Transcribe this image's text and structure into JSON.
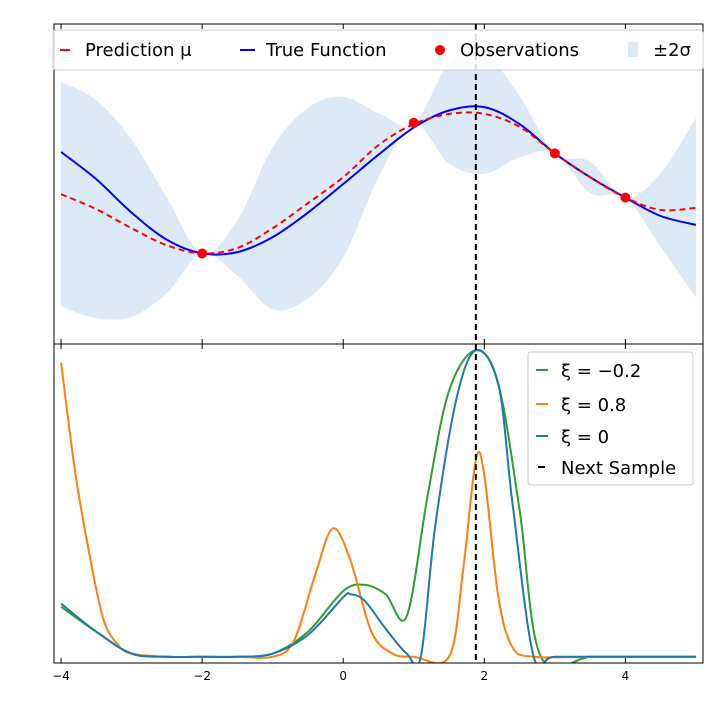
{
  "chart_data": [
    {
      "type": "line",
      "panel": "top",
      "xlim": [
        -4.1,
        5.1
      ],
      "ylim": [
        -2.2,
        2.5
      ],
      "x_ticks": [
        -4,
        -2,
        0,
        2,
        4
      ],
      "x_ticklabels_shown": false,
      "y_ticks_shown": false,
      "grid": false,
      "legend": {
        "placement": "top, spanning width",
        "entries": [
          "Prediction μ",
          "True Function",
          "Observations",
          "±2σ"
        ]
      },
      "next_sample_x": 1.88,
      "observations": {
        "name": "Observations",
        "color": "#ff0000",
        "x": [
          -2.0,
          1.0,
          3.0,
          4.0
        ],
        "y": [
          -0.87,
          1.05,
          0.6,
          -0.05
        ]
      },
      "series": [
        {
          "name": "True Function",
          "color": "#0000ff",
          "style": "solid",
          "x": [
            -4.0,
            -3.5,
            -3.0,
            -2.5,
            -2.0,
            -1.5,
            -1.0,
            -0.5,
            0.0,
            0.5,
            1.0,
            1.5,
            2.0,
            2.5,
            3.0,
            3.5,
            4.0,
            4.5,
            5.0
          ],
          "y": [
            0.62,
            0.22,
            -0.27,
            -0.67,
            -0.87,
            -0.85,
            -0.63,
            -0.27,
            0.15,
            0.58,
            0.98,
            1.23,
            1.28,
            1.03,
            0.6,
            0.25,
            -0.05,
            -0.32,
            -0.45
          ]
        },
        {
          "name": "Prediction μ",
          "color": "#ff0000",
          "style": "dashed",
          "x": [
            -4.0,
            -3.5,
            -3.0,
            -2.5,
            -2.0,
            -1.5,
            -1.0,
            -0.5,
            0.0,
            0.5,
            1.0,
            1.5,
            2.0,
            2.5,
            3.0,
            3.5,
            4.0,
            4.5,
            5.0
          ],
          "y": [
            0.0,
            -0.22,
            -0.5,
            -0.75,
            -0.87,
            -0.79,
            -0.5,
            -0.13,
            0.25,
            0.72,
            1.03,
            1.18,
            1.18,
            0.99,
            0.6,
            0.25,
            -0.05,
            -0.23,
            -0.2
          ]
        }
      ],
      "band": {
        "name": "±2σ",
        "color": "#dce9f6",
        "x": [
          -4.0,
          -3.5,
          -3.0,
          -2.5,
          -2.0,
          -1.5,
          -1.0,
          -0.5,
          0.0,
          0.5,
          1.0,
          1.5,
          2.0,
          2.5,
          3.0,
          3.5,
          4.0,
          4.5,
          5.0
        ],
        "lower": [
          -1.65,
          -1.82,
          -1.8,
          -1.45,
          -0.87,
          -1.2,
          -1.69,
          -1.53,
          -0.93,
          0.25,
          1.03,
          0.45,
          0.3,
          0.54,
          0.6,
          0.02,
          -0.05,
          -0.77,
          -1.52
        ],
        "upper": [
          1.65,
          1.38,
          0.8,
          -0.05,
          -0.87,
          -0.38,
          0.69,
          1.27,
          1.43,
          1.19,
          1.03,
          1.92,
          2.06,
          1.44,
          0.6,
          0.48,
          -0.05,
          0.31,
          1.12
        ]
      }
    },
    {
      "type": "line",
      "panel": "bottom",
      "xlim": [
        -4.1,
        5.1
      ],
      "ylim": [
        -0.02,
        1.0
      ],
      "x_ticks": [
        -4,
        -2,
        0,
        2,
        4
      ],
      "x_ticklabels": [
        "−4",
        "−2",
        "0",
        "2",
        "4"
      ],
      "y_ticks_shown": false,
      "grid": false,
      "legend": {
        "placement": "top-right",
        "entries": [
          "ξ = −0.2",
          "ξ = 0.8",
          "ξ = 0",
          "Next Sample"
        ]
      },
      "next_sample_x": 1.88,
      "series": [
        {
          "name": "ξ = −0.2",
          "color": "#2ca02c",
          "x": [
            -4.0,
            -3.5,
            -3.0,
            -2.5,
            -2.0,
            -1.5,
            -1.0,
            -0.5,
            0.0,
            0.3,
            0.6,
            0.9,
            1.2,
            1.5,
            1.88,
            2.2,
            2.5,
            2.8,
            3.5,
            4.0,
            5.0
          ],
          "y": [
            0.16,
            0.08,
            0.01,
            0.0,
            0.0,
            0.0,
            0.01,
            0.08,
            0.21,
            0.23,
            0.2,
            0.13,
            0.52,
            0.85,
            0.98,
            0.87,
            0.47,
            0.0,
            0.0,
            0.0,
            0.0
          ]
        },
        {
          "name": "ξ = 0.8",
          "color": "#ff7f0e",
          "x": [
            -4.0,
            -3.8,
            -3.6,
            -3.4,
            -3.2,
            -3.0,
            -2.5,
            -2.0,
            -1.5,
            -1.0,
            -0.7,
            -0.4,
            -0.15,
            0.1,
            0.4,
            0.7,
            1.0,
            1.5,
            1.7,
            1.88,
            2.0,
            2.2,
            2.4,
            2.7,
            3.5,
            4.0,
            5.0
          ],
          "y": [
            0.94,
            0.59,
            0.33,
            0.12,
            0.04,
            0.01,
            0.0,
            0.0,
            0.0,
            0.0,
            0.05,
            0.26,
            0.41,
            0.31,
            0.08,
            0.01,
            0.0,
            0.0,
            0.28,
            0.63,
            0.58,
            0.19,
            0.03,
            0.0,
            0.0,
            0.0,
            0.0
          ]
        },
        {
          "name": "ξ = 0",
          "color": "#1f77b4",
          "x": [
            -4.0,
            -3.5,
            -3.0,
            -2.5,
            -2.0,
            -1.5,
            -1.0,
            -0.5,
            0.0,
            0.1,
            0.3,
            0.6,
            0.9,
            1.1,
            1.3,
            1.6,
            1.88,
            2.2,
            2.4,
            2.7,
            3.0,
            4.0,
            5.0
          ],
          "y": [
            0.17,
            0.08,
            0.01,
            0.0,
            0.0,
            0.0,
            0.01,
            0.07,
            0.19,
            0.2,
            0.18,
            0.09,
            0.01,
            0.0,
            0.41,
            0.82,
            0.98,
            0.87,
            0.49,
            0.0,
            0.0,
            0.0,
            0.0
          ]
        }
      ]
    }
  ],
  "legend_labels": {
    "prediction": "Prediction μ",
    "true_function": "True Function",
    "observations": "Observations",
    "sigma": "±2σ",
    "xi_neg": "ξ = −0.2",
    "xi_pos": "ξ = 0.8",
    "xi_zero": "ξ = 0",
    "next_sample": "Next Sample"
  }
}
